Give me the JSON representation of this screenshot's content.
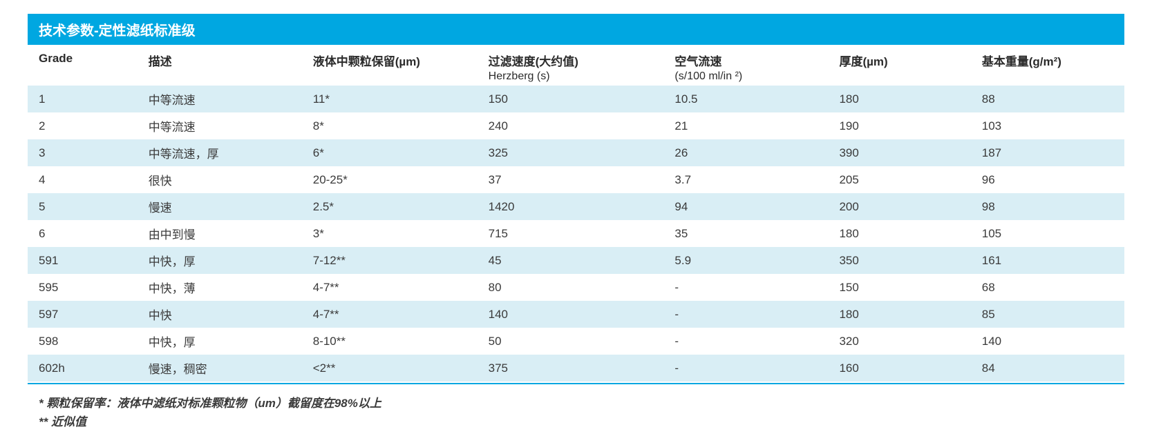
{
  "title": "技术参数-定性滤纸标准级",
  "colors": {
    "title_bg": "#00a7e1",
    "title_text": "#ffffff",
    "header_text": "#2b2b2b",
    "body_text": "#3a3a3a",
    "row_odd_bg": "#d9eef5",
    "row_even_bg": "#ffffff",
    "bottom_rule": "#00a7e1"
  },
  "columns": [
    {
      "label": "Grade",
      "sub": "",
      "width": "10%"
    },
    {
      "label": "描述",
      "sub": "",
      "width": "15%"
    },
    {
      "label": "液体中颗粒保留(µm)",
      "sub": "",
      "width": "16%"
    },
    {
      "label": "过滤速度(大约值)",
      "sub": "Herzberg (s)",
      "width": "17%"
    },
    {
      "label": "空气流速",
      "sub": "(s/100 ml/in ²)",
      "width": "15%"
    },
    {
      "label": "厚度(µm)",
      "sub": "",
      "width": "13%"
    },
    {
      "label": "基本重量(g/m²)",
      "sub": "",
      "width": "14%"
    }
  ],
  "rows": [
    [
      "1",
      "中等流速",
      "11*",
      "150",
      "10.5",
      "180",
      "88"
    ],
    [
      "2",
      "中等流速",
      "8*",
      "240",
      "21",
      "190",
      "103"
    ],
    [
      "3",
      "中等流速，厚",
      "6*",
      "325",
      "26",
      "390",
      "187"
    ],
    [
      "4",
      "很快",
      "20-25*",
      "37",
      "3.7",
      "205",
      "96"
    ],
    [
      "5",
      "慢速",
      "2.5*",
      "1420",
      "94",
      "200",
      "98"
    ],
    [
      "6",
      "由中到慢",
      "3*",
      "715",
      "35",
      "180",
      "105"
    ],
    [
      "591",
      "中快，厚",
      "7-12**",
      "45",
      "5.9",
      "350",
      "161"
    ],
    [
      "595",
      "中快，薄",
      "4-7**",
      "80",
      "-",
      "150",
      "68"
    ],
    [
      "597",
      "中快",
      "4-7**",
      "140",
      "-",
      "180",
      "85"
    ],
    [
      "598",
      "中快，厚",
      "8-10**",
      "50",
      "-",
      "320",
      "140"
    ],
    [
      "602h",
      "慢速，稠密",
      "<2**",
      "375",
      "-",
      "160",
      "84"
    ]
  ],
  "footnotes": [
    "* 颗粒保留率：液体中滤纸对标准颗粒物（um）截留度在98%以上",
    "** 近似值"
  ]
}
